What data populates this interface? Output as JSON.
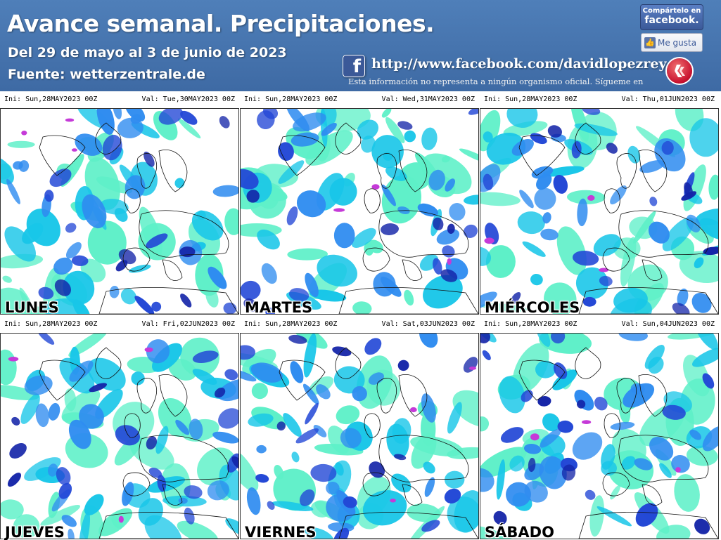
{
  "header": {
    "title": "Avance semanal. Precipitaciones.",
    "subtitle": "Del 29 de mayo al 3 de junio de 2023",
    "source": "Fuente: wetterzentrale.de",
    "facebook_url": "http://www.facebook.com/davidlopezrey",
    "disclaimer": "Esta información no representa a ningún organismo oficial. Sígueme en",
    "share_line1": "Compártelo en",
    "share_line2": "facebook.",
    "like_label": "Me gusta",
    "colors": {
      "header_bg": "#4a78b4",
      "facebook_blue": "#3b5998",
      "logo_red": "#c8102e"
    }
  },
  "panels": [
    {
      "ini": "Ini: Sun,28MAY2023 00Z",
      "val": "Val: Tue,30MAY2023 00Z",
      "day": "LUNES"
    },
    {
      "ini": "Ini: Sun,28MAY2023 00Z",
      "val": "Val: Wed,31MAY2023 00Z",
      "day": "MARTES"
    },
    {
      "ini": "Ini: Sun,28MAY2023 00Z",
      "val": "Val: Thu,01JUN2023 00Z",
      "day": "MIÉRCOLES"
    },
    {
      "ini": "Ini: Sun,28MAY2023 00Z",
      "val": "Val: Fri,02JUN2023 00Z",
      "day": "JUEVES"
    },
    {
      "ini": "Ini: Sun,28MAY2023 00Z",
      "val": "Val: Sat,03JUN2023 00Z",
      "day": "VIERNES"
    },
    {
      "ini": "Ini: Sun,28MAY2023 00Z",
      "val": "Val: Sun,04JUN2023 00Z",
      "day": "SÁBADO"
    }
  ],
  "map_colors": {
    "light": "#5ef0c8",
    "cyan": "#18c6e8",
    "mid": "#2f8cf0",
    "blue": "#2247d6",
    "dark": "#1424a8",
    "magenta": "#c53ad8"
  }
}
